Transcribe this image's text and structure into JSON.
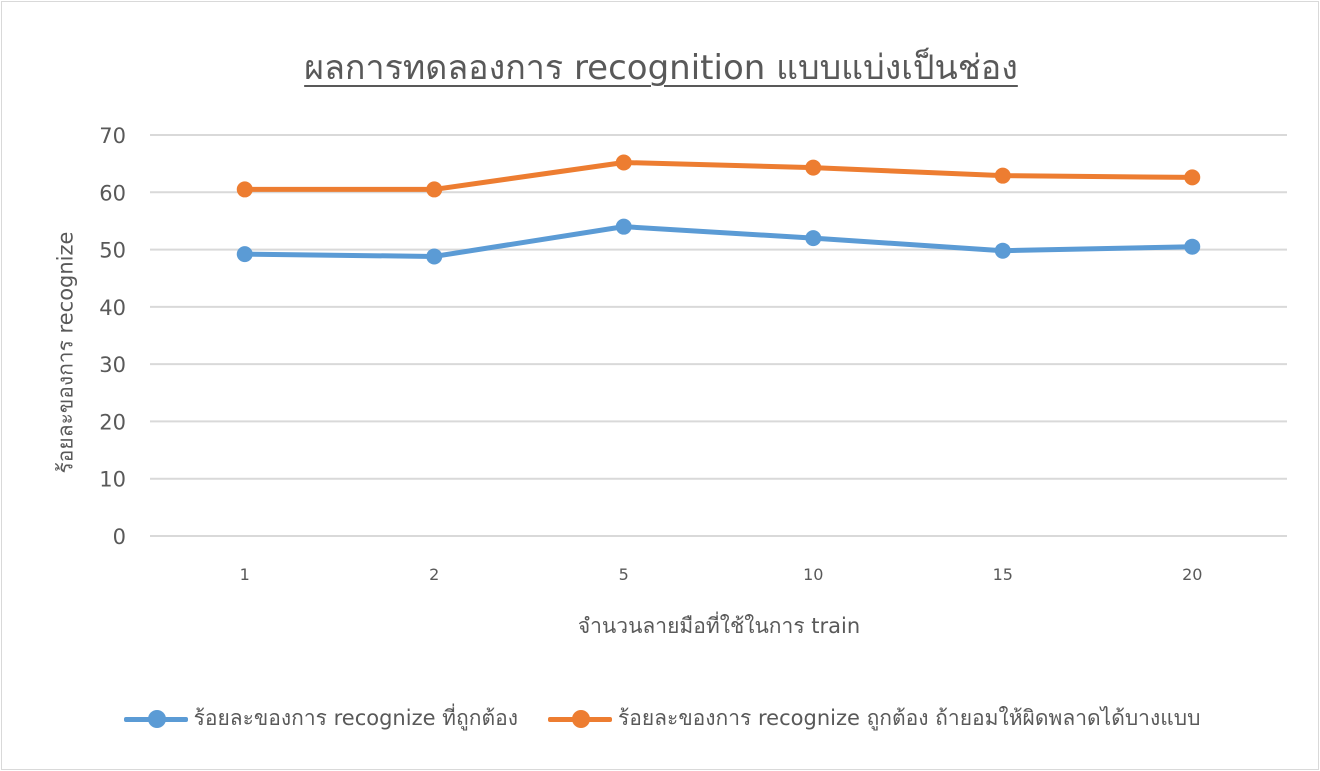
{
  "chart_data": {
    "type": "line",
    "title": "ผลการทดลองการ recognition แบบแบ่งเป็นช่อง",
    "xlabel": "จำนวนลายมือที่ใช้ในการ train",
    "ylabel": "ร้อยละของการ recognize",
    "categories": [
      "1",
      "2",
      "5",
      "10",
      "15",
      "20"
    ],
    "ylim": [
      0,
      70
    ],
    "yticks": [
      0,
      10,
      20,
      30,
      40,
      50,
      60,
      70
    ],
    "grid": true,
    "legend_position": "bottom",
    "series": [
      {
        "name": "ร้อยละของการ recognize ที่ถูกต้อง",
        "color": "#5b9bd5",
        "values": [
          49.2,
          48.8,
          54.0,
          52.0,
          49.8,
          50.5
        ]
      },
      {
        "name": "ร้อยละของการ recognize ถูกต้อง ถ้ายอมให้ผิดพลาดได้บางแบบ",
        "color": "#ed7d31",
        "values": [
          60.5,
          60.5,
          65.2,
          64.3,
          62.9,
          62.6
        ]
      }
    ]
  }
}
